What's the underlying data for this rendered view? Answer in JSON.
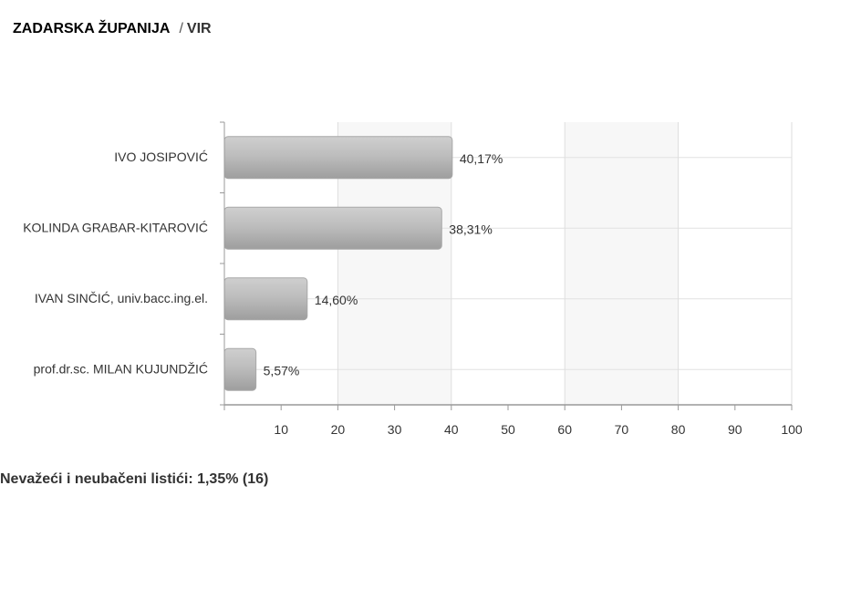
{
  "header": {
    "region": "ZADARSKA ŽUPANIJA",
    "separator": "/",
    "place": "VIR"
  },
  "chart_data": {
    "type": "bar",
    "orientation": "horizontal",
    "categories": [
      "IVO JOSIPOVIĆ",
      "KOLINDA GRABAR-KITAROVIĆ",
      "IVAN SINČIĆ, univ.bacc.ing.el.",
      "prof.dr.sc. MILAN KUJUNDŽIĆ"
    ],
    "values": [
      40.17,
      38.31,
      14.6,
      5.57
    ],
    "value_labels": [
      "40,17%",
      "38,31%",
      "14,60%",
      "5,57%"
    ],
    "xlim": [
      0,
      100
    ],
    "xticks": [
      10,
      20,
      30,
      40,
      50,
      60,
      70,
      80,
      90,
      100
    ],
    "grid": true,
    "bar_color": "#b8b8b8"
  },
  "footer": {
    "invalid_ballots": "Nevažeći i neubačeni listići: 1,35% (16)"
  }
}
